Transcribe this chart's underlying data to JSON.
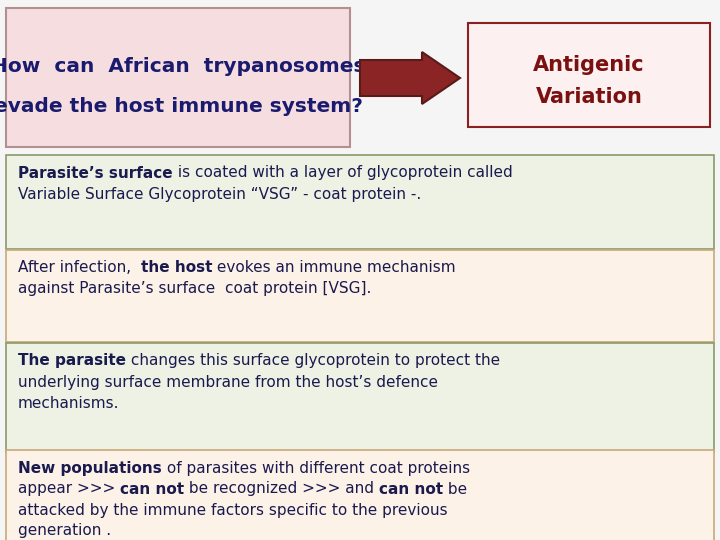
{
  "bg_color": "#f5f5f5",
  "title_box_bg": "#f5dde0",
  "title_box_border": "#b09090",
  "title_text_color": "#1a1a6e",
  "title_line1": "How  can  African  trypanosomes",
  "title_line2": "evade the host immune system?",
  "title_fontsize": 14.5,
  "answer_box_bg": "#fdf0f0",
  "answer_box_border": "#8b2020",
  "answer_text_color": "#7b1010",
  "answer_line1": "Antigenic",
  "answer_line2": "Variation",
  "answer_fontsize": 15,
  "arrow_color": "#8b2525",
  "box1_bg": "#edf2e5",
  "box1_border": "#8a9a6a",
  "box2_bg": "#fdf2e8",
  "box2_border": "#c8a878",
  "box3_bg": "#edf2e5",
  "box3_border": "#8a9a6a",
  "box4_bg": "#fdf2e8",
  "box4_border": "#c8a878",
  "text_color": "#1a1a4e",
  "content_fontsize": 11.0
}
